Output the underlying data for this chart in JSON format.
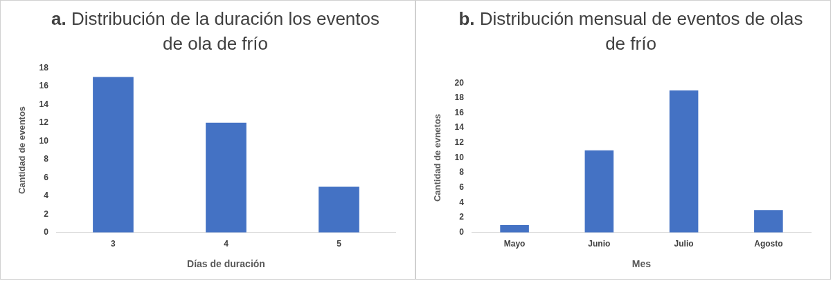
{
  "chart_data": [
    {
      "type": "bar",
      "title": "a. Distribución de la duración los eventos de ola de frío",
      "xlabel": "Días de duración",
      "ylabel": "Cantidad de eventos",
      "categories": [
        "3",
        "4",
        "5"
      ],
      "values": [
        17,
        12,
        5
      ],
      "color": "#4472c4",
      "ylim": [
        0,
        18
      ],
      "yticks": [
        0,
        2,
        4,
        6,
        8,
        10,
        12,
        14,
        16,
        18
      ],
      "grid": false,
      "legend": false
    },
    {
      "type": "bar",
      "title": "b. Distribución mensual de eventos de olas de frío",
      "xlabel": "Mes",
      "ylabel": "Cantidad de evnetos",
      "categories": [
        "Mayo",
        "Junio",
        "Julio",
        "Agosto"
      ],
      "values": [
        1,
        11,
        19,
        3
      ],
      "color": "#4472c4",
      "ylim": [
        0,
        20
      ],
      "yticks": [
        0,
        2,
        4,
        6,
        8,
        10,
        12,
        14,
        16,
        18,
        20
      ],
      "grid": false,
      "legend": false
    }
  ]
}
